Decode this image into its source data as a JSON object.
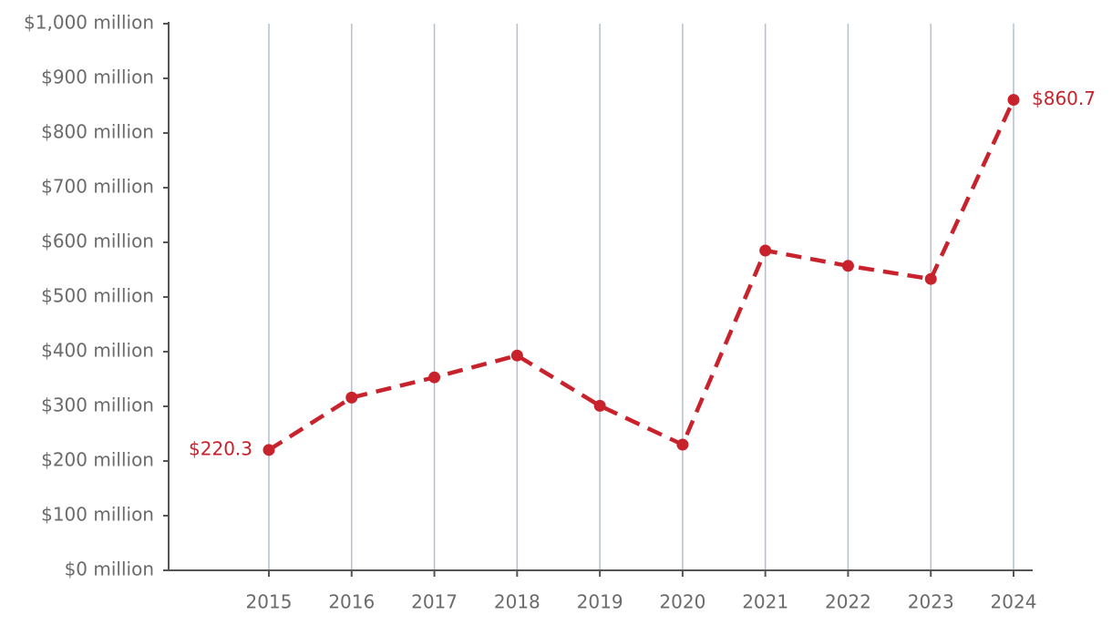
{
  "chart_data": {
    "type": "line",
    "categories": [
      "2015",
      "2016",
      "2017",
      "2018",
      "2019",
      "2020",
      "2021",
      "2022",
      "2023",
      "2024"
    ],
    "values": [
      220.3,
      316,
      353,
      393,
      301,
      230,
      585,
      557,
      533,
      860.7
    ],
    "value_labels": [
      "$220.3",
      null,
      null,
      null,
      null,
      null,
      null,
      null,
      null,
      "$860.7"
    ],
    "color": "#c8222c",
    "ylim": [
      0,
      1000
    ],
    "yticks": [
      {
        "value": 0,
        "label": "$0 million"
      },
      {
        "value": 100,
        "label": "$100 million"
      },
      {
        "value": 200,
        "label": "$200 million"
      },
      {
        "value": 300,
        "label": "$300 million"
      },
      {
        "value": 400,
        "label": "$400 million"
      },
      {
        "value": 500,
        "label": "$500 million"
      },
      {
        "value": 600,
        "label": "$600 million"
      },
      {
        "value": 700,
        "label": "$700 million"
      },
      {
        "value": 800,
        "label": "$800 million"
      },
      {
        "value": 900,
        "label": "$900 million"
      },
      {
        "value": 1000,
        "label": "$1,000 million"
      }
    ],
    "grid": true
  }
}
